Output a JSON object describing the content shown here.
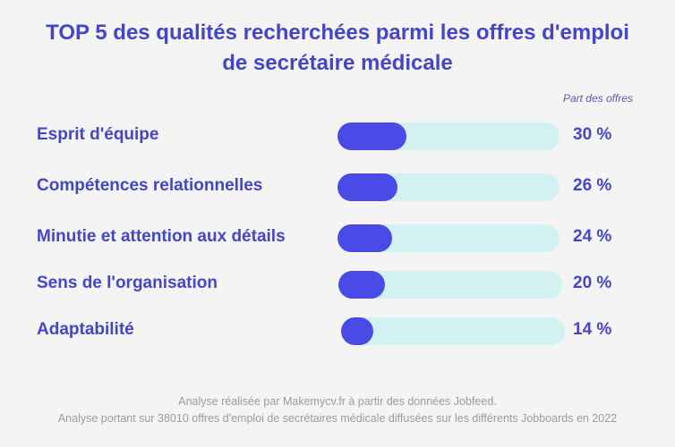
{
  "chart_data": {
    "type": "bar",
    "title_line1": "TOP 5 des qualités recherchées parmi les offres d'emploi",
    "title_line2": "de secrétaire médicale",
    "column_label": "Part des offres",
    "categories": [
      "Esprit d'équipe",
      "Compétences relationnelles",
      "Minutie et attention aux détails",
      "Sens de l'organisation",
      "Adaptabilité"
    ],
    "values": [
      30,
      26,
      24,
      20,
      14
    ],
    "value_labels": [
      "30 %",
      "26 %",
      "24 %",
      "20 %",
      "14 %"
    ],
    "xlim": [
      0,
      100
    ],
    "colors": {
      "fill": "#4a4ae6",
      "track": "#d3f1f3",
      "text": "#4545c8"
    }
  },
  "footer": {
    "line1": "Analyse réalisée par Makemycv.fr à partir des données Jobfeed.",
    "line2": "Analyse portant sur 38010 offres d'emploi de secrétaires médicale diffusées sur les différents Jobboards en 2022"
  }
}
